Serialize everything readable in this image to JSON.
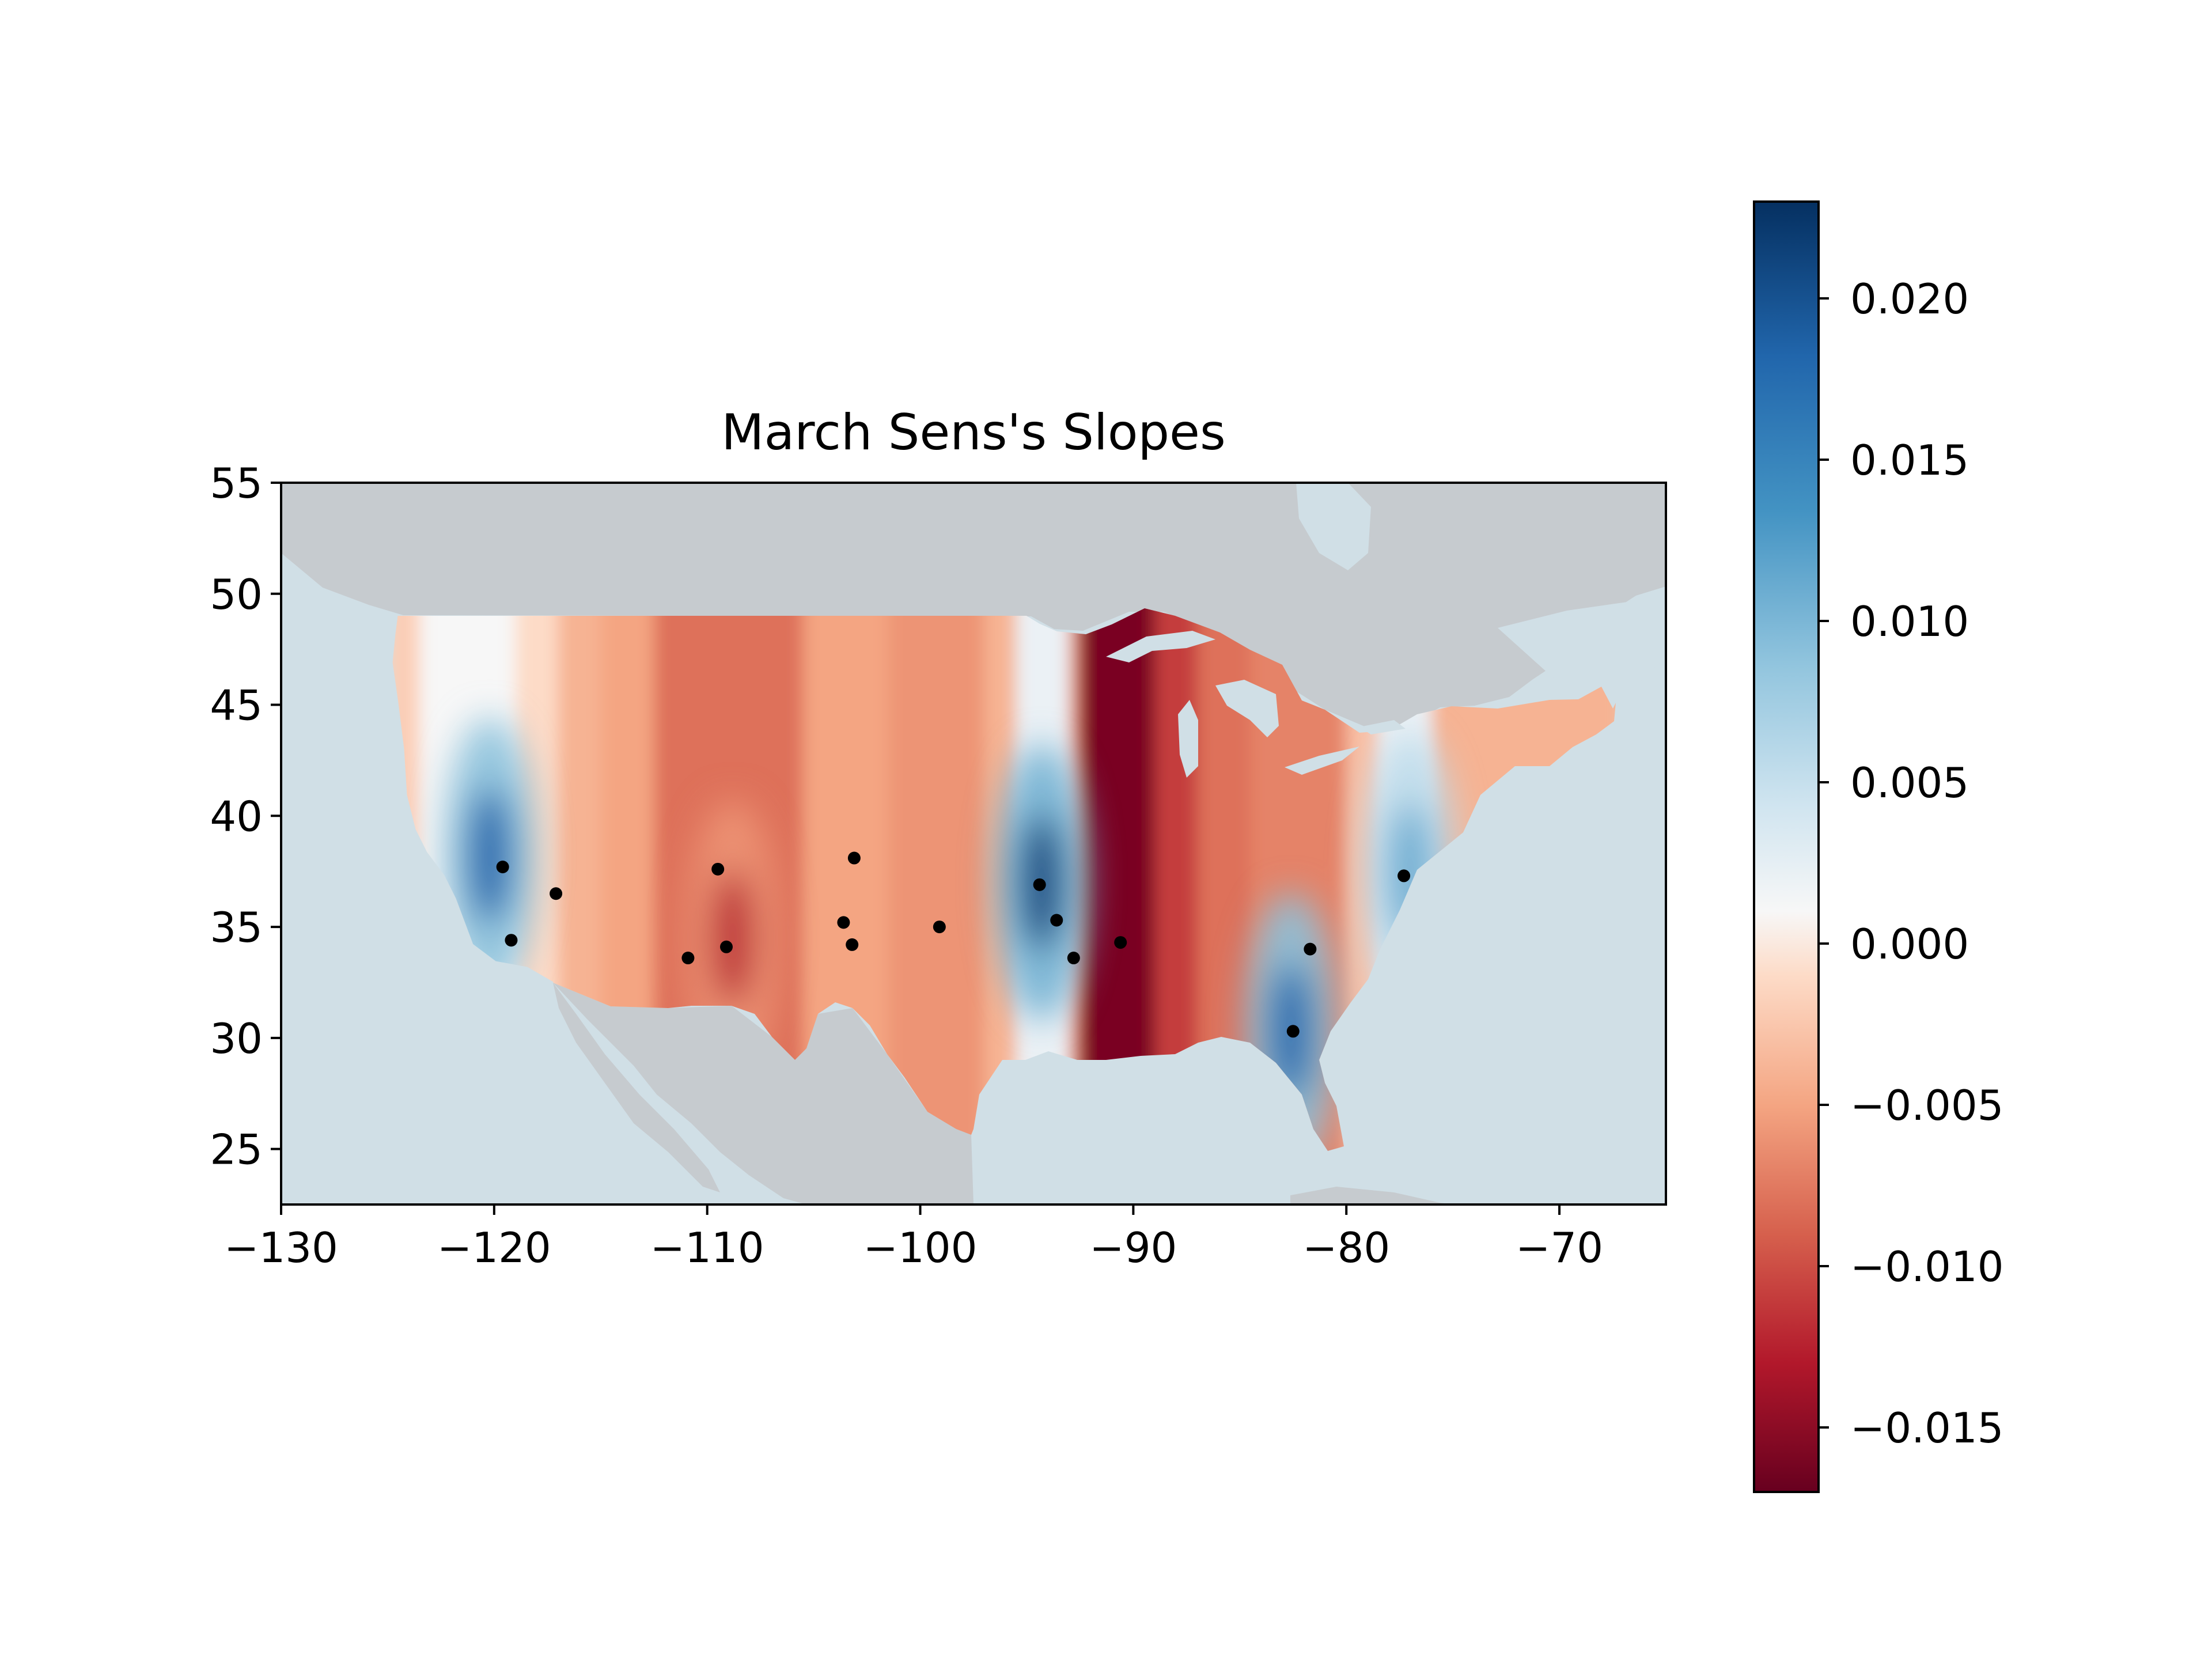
{
  "chart_data": {
    "type": "heatmap",
    "title": "March Sens's Slopes",
    "xlabel": "",
    "ylabel": "",
    "xlim": [
      -130,
      -65
    ],
    "ylim": [
      22.5,
      55
    ],
    "xticks": [
      -130,
      -120,
      -110,
      -100,
      -90,
      -80,
      -70
    ],
    "xtick_labels": [
      "−130",
      "−120",
      "−110",
      "−100",
      "−90",
      "−80",
      "−70"
    ],
    "yticks": [
      25,
      30,
      35,
      40,
      45,
      50,
      55
    ],
    "ytick_labels": [
      "25",
      "30",
      "35",
      "40",
      "45",
      "50",
      "55"
    ],
    "colorbar": {
      "colormap": "RdBu",
      "range": [
        -0.017,
        0.023
      ],
      "ticks": [
        0.02,
        0.015,
        0.01,
        0.005,
        0.0,
        -0.005,
        -0.01,
        -0.015
      ],
      "tick_labels": [
        "0.020",
        "0.015",
        "0.010",
        "0.005",
        "0.000",
        "−0.005",
        "−0.010",
        "−0.015"
      ]
    },
    "stations": [
      {
        "lon": -119.6,
        "lat": 37.7
      },
      {
        "lon": -117.1,
        "lat": 36.5
      },
      {
        "lon": -119.2,
        "lat": 34.4
      },
      {
        "lon": -109.5,
        "lat": 37.6
      },
      {
        "lon": -110.9,
        "lat": 33.6
      },
      {
        "lon": -109.1,
        "lat": 34.1
      },
      {
        "lon": -103.1,
        "lat": 38.1
      },
      {
        "lon": -103.6,
        "lat": 35.2
      },
      {
        "lon": -103.2,
        "lat": 34.2
      },
      {
        "lon": -99.1,
        "lat": 35.0
      },
      {
        "lon": -94.4,
        "lat": 36.9
      },
      {
        "lon": -93.6,
        "lat": 35.3
      },
      {
        "lon": -92.8,
        "lat": 33.6
      },
      {
        "lon": -90.6,
        "lat": 34.3
      },
      {
        "lon": -82.5,
        "lat": 30.3
      },
      {
        "lon": -81.7,
        "lat": 34.0
      },
      {
        "lon": -77.3,
        "lat": 37.3
      }
    ],
    "field_bands": [
      {
        "lon_min": -125,
        "lon_max": -123.5,
        "value": -0.002
      },
      {
        "lon_min": -123.5,
        "lon_max": -119,
        "value": 0.001
      },
      {
        "lon_min": -119,
        "lon_max": -117,
        "value": -0.001
      },
      {
        "lon_min": -117,
        "lon_max": -115,
        "value": -0.004
      },
      {
        "lon_min": -115,
        "lon_max": -112.5,
        "value": -0.005
      },
      {
        "lon_min": -112.5,
        "lon_max": -105.5,
        "value": -0.008
      },
      {
        "lon_min": -105.5,
        "lon_max": -101.5,
        "value": -0.005
      },
      {
        "lon_min": -101.5,
        "lon_max": -97,
        "value": -0.006
      },
      {
        "lon_min": -97,
        "lon_max": -95.5,
        "value": -0.004
      },
      {
        "lon_min": -95.5,
        "lon_max": -93,
        "value": 0.002
      },
      {
        "lon_min": -93,
        "lon_max": -92.5,
        "value": -0.007
      },
      {
        "lon_min": -92.5,
        "lon_max": -89,
        "value": -0.016
      },
      {
        "lon_min": -89,
        "lon_max": -87,
        "value": -0.011
      },
      {
        "lon_min": -87,
        "lon_max": -84.5,
        "value": -0.008
      },
      {
        "lon_min": -84.5,
        "lon_max": -80,
        "value": -0.007
      },
      {
        "lon_min": -80,
        "lon_max": -78.5,
        "value": -0.003
      },
      {
        "lon_min": -78.5,
        "lon_max": -76,
        "value": 0.002
      },
      {
        "lon_min": -76,
        "lon_max": -67,
        "value": -0.004
      }
    ],
    "hotspots": [
      {
        "lon": -120.2,
        "lat": 38.2,
        "value": 0.018
      },
      {
        "lon": -108.8,
        "lat": 34.5,
        "value": -0.012
      },
      {
        "lon": -94.3,
        "lat": 37.0,
        "value": 0.021
      },
      {
        "lon": -82.6,
        "lat": 30.3,
        "value": 0.018
      },
      {
        "lon": -77.0,
        "lat": 37.5,
        "value": 0.011
      }
    ]
  }
}
